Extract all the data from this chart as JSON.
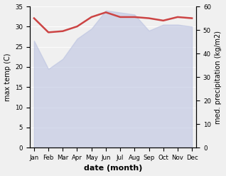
{
  "months": [
    "Jan",
    "Feb",
    "Mar",
    "Apr",
    "May",
    "Jun",
    "Jul",
    "Aug",
    "Sep",
    "Oct",
    "Nov",
    "Dec"
  ],
  "month_positions": [
    0,
    1,
    2,
    3,
    4,
    5,
    6,
    7,
    8,
    9,
    10,
    11
  ],
  "temp_max": [
    26.5,
    19.5,
    22.0,
    27.0,
    29.5,
    34.0,
    33.5,
    33.0,
    29.0,
    30.5,
    30.5,
    30.0
  ],
  "precip": [
    55.0,
    49.0,
    49.5,
    51.5,
    55.5,
    57.5,
    55.5,
    55.5,
    55.0,
    54.0,
    55.5,
    55.0
  ],
  "temp_fill_color": "#b8c0e0",
  "precip_color": "#cc4444",
  "ylabel_left": "max temp (C)",
  "ylabel_right": "med. precipitation (kg/m2)",
  "xlabel": "date (month)",
  "ylim_left": [
    0,
    35
  ],
  "ylim_right": [
    0,
    60
  ],
  "yticks_left": [
    0,
    5,
    10,
    15,
    20,
    25,
    30,
    35
  ],
  "yticks_right": [
    0,
    10,
    20,
    30,
    40,
    50,
    60
  ],
  "background_color": "#f0f0f0",
  "fill_alpha": 0.55
}
